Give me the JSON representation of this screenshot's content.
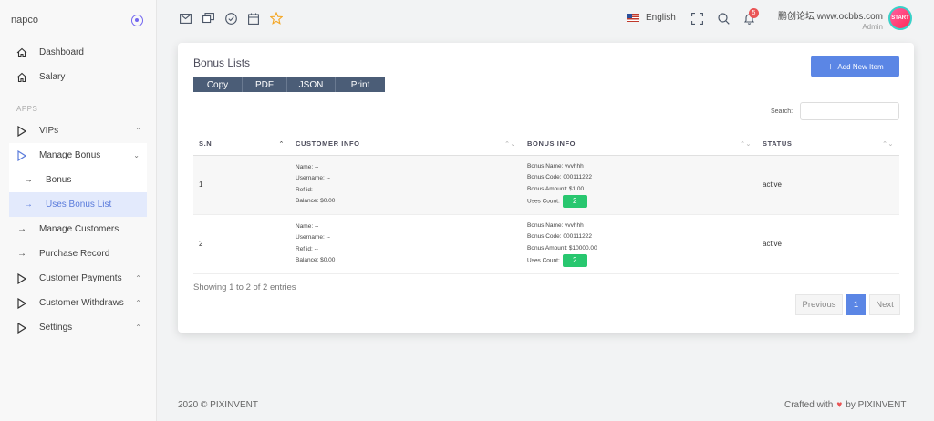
{
  "brand": {
    "name": "napco"
  },
  "sidebar": {
    "top": [
      {
        "label": "Dashboard"
      },
      {
        "label": "Salary"
      }
    ],
    "section_label": "APPS",
    "items": [
      {
        "label": "VIPs"
      },
      {
        "label": "Manage Bonus"
      },
      {
        "label": "Bonus"
      },
      {
        "label": "Uses Bonus List"
      },
      {
        "label": "Manage Customers"
      },
      {
        "label": "Purchase Record"
      },
      {
        "label": "Customer Payments"
      },
      {
        "label": "Customer Withdraws"
      },
      {
        "label": "Settings"
      }
    ]
  },
  "topbar": {
    "language": "English",
    "notification_count": "5",
    "user_name": "鹏创论坛 www.ocbbs.com",
    "user_role": "Admin",
    "avatar_text": "START"
  },
  "card": {
    "title": "Bonus Lists",
    "export_buttons": [
      "Copy",
      "PDF",
      "JSON",
      "Print"
    ],
    "add_button": "Add New Item",
    "search_label": "Search:",
    "search_value": "",
    "columns": [
      "S.N",
      "CUSTOMER INFO",
      "BONUS INFO",
      "STATUS"
    ],
    "rows": [
      {
        "sn": "1",
        "customer": [
          "Name: --",
          "Username: --",
          "Ref id: --",
          "Balance: $0.00"
        ],
        "bonus": [
          "Bonus Name: vvvhhh",
          "Bonus Code: 000111222",
          "Bonus Amount: $1.00",
          "Uses Count:"
        ],
        "uses_count": "2",
        "status": "active"
      },
      {
        "sn": "2",
        "customer": [
          "Name: --",
          "Username: --",
          "Ref id: --",
          "Balance: $0.00"
        ],
        "bonus": [
          "Bonus Name: vvvhhh",
          "Bonus Code: 000111222",
          "Bonus Amount: $10000.00",
          "Uses Count:"
        ],
        "uses_count": "2",
        "status": "active"
      }
    ],
    "showing": "Showing 1 to 2 of 2 entries",
    "pagination": {
      "prev": "Previous",
      "current": "1",
      "next": "Next"
    }
  },
  "footer": {
    "left": "2020 © PIXINVENT",
    "right_prefix": "Crafted with",
    "right_suffix": "by PIXINVENT"
  },
  "colors": {
    "accent": "#5b86e5",
    "success": "#28c76f",
    "danger": "#ea5455",
    "dark_button": "#4b5d77"
  }
}
